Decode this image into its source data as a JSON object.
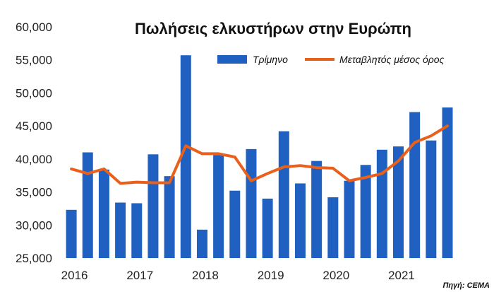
{
  "chart_data": {
    "type": "bar",
    "title": "Πωλήσεις ελκυστήρων στην Ευρώπη",
    "source": "Πηγή: CEMA",
    "ylim": [
      25000,
      60000
    ],
    "y_ticks": [
      "25,000",
      "30,000",
      "35,000",
      "40,000",
      "45,000",
      "50,000",
      "55,000",
      "60,000"
    ],
    "y_tick_values": [
      25000,
      30000,
      35000,
      40000,
      45000,
      50000,
      55000,
      60000
    ],
    "x_year_labels": [
      "2016",
      "2017",
      "2018",
      "2019",
      "2020",
      "2021"
    ],
    "grid": false,
    "legend_position": "top-right",
    "colors": {
      "bar": "#2060c0",
      "line": "#e8601c"
    },
    "series": [
      {
        "name": "Τρίμηνο",
        "type": "bar",
        "values": [
          32300,
          41000,
          38400,
          33400,
          33300,
          40700,
          37400,
          55700,
          29300,
          40600,
          35200,
          41500,
          34000,
          44200,
          36300,
          39700,
          34200,
          36700,
          39100,
          41400,
          41900,
          47100,
          42800,
          47800
        ]
      },
      {
        "name": "Μεταβλητός μέσος όρος",
        "type": "line",
        "values": [
          38500,
          37800,
          38500,
          36300,
          36500,
          36400,
          36400,
          42000,
          40800,
          40800,
          40300,
          36700,
          37800,
          38800,
          39000,
          38700,
          38600,
          36700,
          37200,
          37800,
          39700,
          42500,
          43500,
          45000
        ]
      }
    ]
  }
}
